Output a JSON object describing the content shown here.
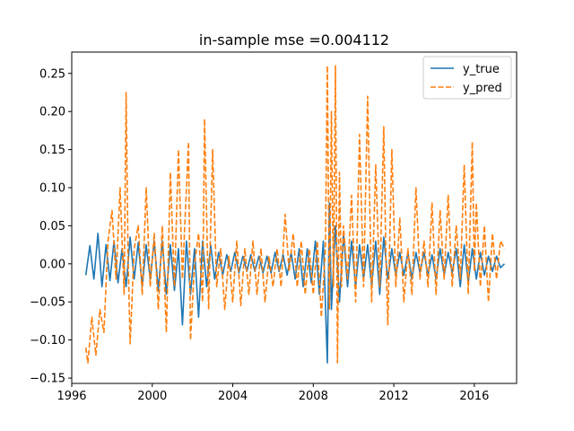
{
  "chart_data": {
    "type": "line",
    "title": "in-sample mse =0.004112",
    "xlabel": "",
    "ylabel": "",
    "xlim": [
      1996.0,
      2018.1
    ],
    "ylim": [
      -0.157,
      0.278
    ],
    "x_ticks": [
      1996,
      2000,
      2004,
      2008,
      2012,
      2016
    ],
    "y_ticks": [
      -0.15,
      -0.1,
      -0.05,
      0.0,
      0.05,
      0.1,
      0.15,
      0.2,
      0.25
    ],
    "y_tick_labels": [
      "−0.15",
      "−0.10",
      "−0.05",
      "0.00",
      "0.05",
      "0.10",
      "0.15",
      "0.20",
      "0.25"
    ],
    "grid": false,
    "legend_position": "upper right",
    "series": [
      {
        "name": "y_true",
        "color": "#1f77b4",
        "dash": "solid",
        "x": [
          1996.7,
          1996.9,
          1997.1,
          1997.3,
          1997.5,
          1997.7,
          1997.9,
          1998.1,
          1998.3,
          1998.5,
          1998.7,
          1998.9,
          1999.1,
          1999.3,
          1999.5,
          1999.7,
          1999.9,
          2000.1,
          2000.3,
          2000.5,
          2000.7,
          2000.9,
          2001.1,
          2001.3,
          2001.5,
          2001.7,
          2001.9,
          2002.1,
          2002.3,
          2002.5,
          2002.7,
          2002.9,
          2003.1,
          2003.3,
          2003.5,
          2003.7,
          2003.9,
          2004.1,
          2004.3,
          2004.5,
          2004.7,
          2004.9,
          2005.1,
          2005.3,
          2005.5,
          2005.7,
          2005.9,
          2006.1,
          2006.3,
          2006.5,
          2006.7,
          2006.9,
          2007.1,
          2007.3,
          2007.5,
          2007.7,
          2007.9,
          2008.1,
          2008.3,
          2008.5,
          2008.7,
          2008.8,
          2008.9,
          2009.1,
          2009.3,
          2009.5,
          2009.7,
          2009.9,
          2010.1,
          2010.3,
          2010.5,
          2010.7,
          2010.9,
          2011.1,
          2011.3,
          2011.5,
          2011.7,
          2011.9,
          2012.1,
          2012.3,
          2012.5,
          2012.7,
          2012.9,
          2013.1,
          2013.3,
          2013.5,
          2013.7,
          2013.9,
          2014.1,
          2014.3,
          2014.5,
          2014.7,
          2014.9,
          2015.1,
          2015.3,
          2015.5,
          2015.7,
          2015.9,
          2016.1,
          2016.3,
          2016.5,
          2016.7,
          2016.9,
          2017.1,
          2017.3,
          2017.5
        ],
        "y": [
          -0.015,
          0.024,
          -0.02,
          0.04,
          -0.03,
          0.025,
          -0.022,
          0.03,
          -0.025,
          0.02,
          -0.03,
          0.035,
          -0.02,
          0.028,
          -0.03,
          0.025,
          -0.02,
          0.03,
          -0.035,
          0.03,
          -0.04,
          0.025,
          -0.035,
          0.02,
          -0.08,
          0.03,
          -0.04,
          0.02,
          -0.07,
          0.03,
          -0.03,
          0.025,
          -0.02,
          0.015,
          -0.015,
          0.012,
          -0.01,
          0.015,
          -0.012,
          0.01,
          -0.01,
          0.012,
          -0.01,
          0.01,
          -0.012,
          0.01,
          -0.012,
          0.015,
          -0.01,
          0.012,
          -0.015,
          0.015,
          -0.02,
          0.02,
          -0.03,
          0.02,
          -0.025,
          0.03,
          -0.04,
          0.03,
          -0.13,
          0.08,
          -0.06,
          0.05,
          -0.05,
          0.04,
          -0.03,
          0.03,
          -0.03,
          0.025,
          -0.02,
          0.025,
          -0.03,
          0.03,
          -0.04,
          0.035,
          -0.02,
          0.02,
          -0.015,
          0.015,
          -0.015,
          0.015,
          -0.02,
          0.015,
          -0.012,
          0.015,
          -0.015,
          0.012,
          -0.02,
          0.02,
          -0.015,
          0.015,
          -0.012,
          0.02,
          -0.03,
          0.025,
          -0.025,
          0.02,
          -0.02,
          0.015,
          -0.015,
          0.01,
          -0.01,
          0.01,
          -0.005,
          0.0
        ]
      },
      {
        "name": "y_pred",
        "color": "#ff7f0e",
        "dash": "dashed",
        "x": [
          1996.7,
          1996.8,
          1997.0,
          1997.2,
          1997.4,
          1997.6,
          1997.8,
          1998.0,
          1998.2,
          1998.4,
          1998.6,
          1998.7,
          1998.8,
          1998.9,
          1999.1,
          1999.3,
          1999.5,
          1999.7,
          1999.9,
          2000.1,
          2000.3,
          2000.5,
          2000.7,
          2000.9,
          2001.1,
          2001.3,
          2001.5,
          2001.7,
          2001.8,
          2001.9,
          2002.1,
          2002.3,
          2002.5,
          2002.6,
          2002.8,
          2003.0,
          2003.2,
          2003.4,
          2003.6,
          2003.8,
          2004.0,
          2004.2,
          2004.4,
          2004.6,
          2004.8,
          2005.0,
          2005.2,
          2005.4,
          2005.6,
          2005.8,
          2006.0,
          2006.2,
          2006.4,
          2006.6,
          2006.8,
          2007.0,
          2007.2,
          2007.4,
          2007.6,
          2007.8,
          2008.0,
          2008.2,
          2008.4,
          2008.6,
          2008.7,
          2008.8,
          2008.9,
          2009.0,
          2009.1,
          2009.2,
          2009.3,
          2009.4,
          2009.5,
          2009.7,
          2009.9,
          2010.1,
          2010.3,
          2010.5,
          2010.7,
          2010.9,
          2011.1,
          2011.3,
          2011.5,
          2011.6,
          2011.7,
          2011.9,
          2012.1,
          2012.3,
          2012.5,
          2012.7,
          2012.9,
          2013.1,
          2013.3,
          2013.5,
          2013.7,
          2013.9,
          2014.1,
          2014.3,
          2014.5,
          2014.7,
          2014.9,
          2015.1,
          2015.3,
          2015.5,
          2015.7,
          2015.9,
          2016.0,
          2016.1,
          2016.3,
          2016.5,
          2016.7,
          2016.9,
          2017.1,
          2017.3,
          2017.5
        ],
        "y": [
          -0.11,
          -0.13,
          -0.07,
          -0.12,
          -0.06,
          -0.09,
          0.03,
          0.07,
          -0.02,
          0.1,
          -0.04,
          0.225,
          0.01,
          -0.105,
          0.02,
          0.05,
          -0.04,
          0.1,
          -0.03,
          0.04,
          -0.06,
          0.05,
          -0.09,
          0.12,
          -0.03,
          0.15,
          -0.02,
          0.1,
          0.16,
          -0.1,
          0.0,
          0.04,
          -0.05,
          0.19,
          -0.06,
          0.15,
          -0.03,
          0.02,
          -0.06,
          0.01,
          -0.05,
          0.03,
          -0.055,
          0.02,
          -0.04,
          0.03,
          -0.04,
          0.02,
          -0.05,
          0.01,
          -0.03,
          0.02,
          -0.03,
          0.065,
          -0.01,
          0.04,
          -0.03,
          0.03,
          -0.04,
          0.02,
          -0.04,
          0.03,
          -0.07,
          0.02,
          0.26,
          -0.06,
          0.2,
          -0.03,
          0.26,
          -0.13,
          0.12,
          -0.03,
          0.05,
          -0.02,
          0.09,
          -0.05,
          0.17,
          -0.03,
          0.22,
          -0.05,
          0.13,
          -0.03,
          0.18,
          0.02,
          -0.08,
          0.15,
          -0.03,
          0.06,
          -0.05,
          0.02,
          -0.04,
          0.1,
          -0.02,
          0.03,
          -0.03,
          0.08,
          -0.04,
          0.07,
          -0.02,
          0.09,
          -0.03,
          0.05,
          -0.02,
          0.13,
          -0.04,
          0.16,
          -0.01,
          0.08,
          -0.03,
          0.05,
          -0.05,
          0.04,
          -0.02,
          0.03,
          0.02
        ]
      }
    ]
  }
}
